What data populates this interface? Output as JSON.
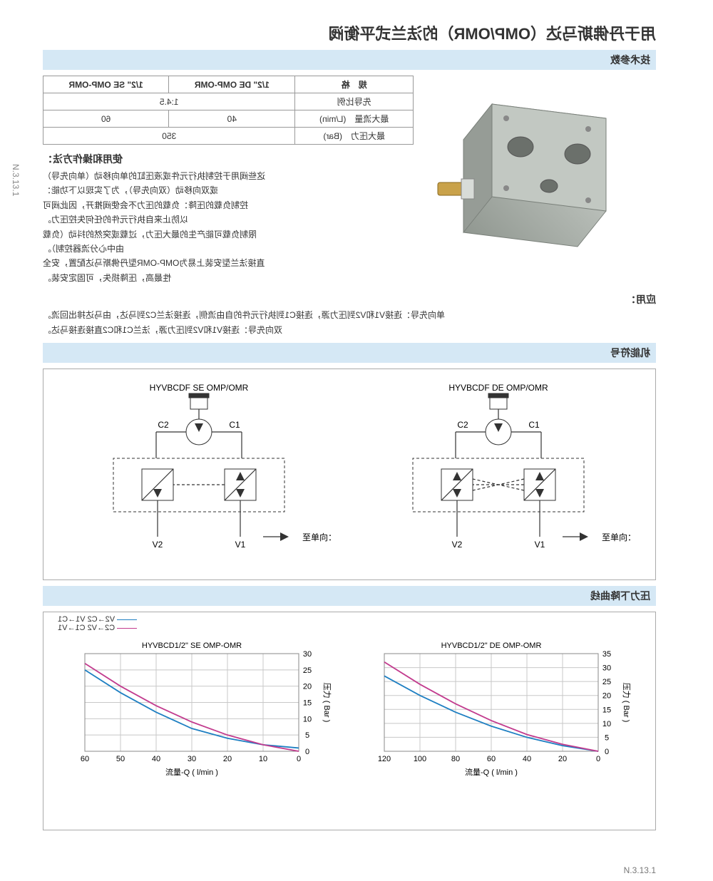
{
  "page_code": "N.3.13.1",
  "title": "用于丹佛斯马达（OMP/OMR）的法兰式平衡阀",
  "sections": {
    "tech": "技术参数",
    "func": "机能符号",
    "curve": "压力下降曲线"
  },
  "spec_table": {
    "headers": [
      "规　格",
      "1/2\" DE OMP-OMR",
      "1/2\" SE OMP-OMR"
    ],
    "rows": [
      [
        "先导比例",
        "1:4.5",
        ""
      ],
      [
        "最大流量　(L/min)",
        "40",
        "60"
      ],
      [
        "最大压力　(Bar)",
        "350",
        ""
      ]
    ]
  },
  "usage": {
    "title": "使用和操作方法：",
    "lines": [
      "这些阀用于控制执行元件或液压缸的单向移动（单向先导）",
      "或双向移动（双向先导），为了实现以下功能：",
      "控制负载的压降：负载的压力不会使阀推开，因此阀可",
      "以防止来自执行元件的任何失控压力。",
      "限制负载可能产生的最大压力，过载或突然的抖动（负载",
      "由中心分流器控制）。",
      "直接法兰型安装上易为OMP-OMR型丹佛斯马达配置，安全",
      "性最高，压降损失，可固定安装。"
    ]
  },
  "application": {
    "title": "应用：",
    "lines": [
      "单向先导：连接V1和V2到压力源，连接C1到执行元件的自由流侧，连接法兰C2到马达，由马达排出回流。",
      "双向先导：连接V1和V2到压力源，法兰C1和C2直接连接马达。"
    ]
  },
  "schematics": {
    "de": {
      "title": "HYVBCDF DE OMP/OMR",
      "c1": "C1",
      "c2": "C2",
      "v1": "V1",
      "v2": "V2",
      "to": "至单向："
    },
    "se": {
      "title": "HYVBCDF SE OMP/OMR",
      "c1": "C1",
      "c2": "C2",
      "v1": "V1",
      "v2": "V2",
      "to": "至单向："
    }
  },
  "charts": {
    "xlabel": "流量-Q ( l/min )",
    "ylabel": "压力 ( Bar )",
    "de": {
      "title": "HYVBCD1/2\" DE OMP-OMR",
      "xticks": [
        0,
        20,
        40,
        60,
        80,
        100,
        120
      ],
      "yticks": [
        0,
        5,
        10,
        15,
        20,
        25,
        30,
        35
      ],
      "colors": {
        "s1": "#1e7fc2",
        "s2": "#c23b8e"
      },
      "series1": [
        [
          0,
          0
        ],
        [
          20,
          2
        ],
        [
          40,
          5
        ],
        [
          60,
          9
        ],
        [
          80,
          14
        ],
        [
          100,
          20
        ],
        [
          120,
          27
        ]
      ],
      "series2": [
        [
          0,
          0
        ],
        [
          20,
          2.5
        ],
        [
          40,
          6
        ],
        [
          60,
          11
        ],
        [
          80,
          17
        ],
        [
          100,
          24
        ],
        [
          120,
          32
        ]
      ]
    },
    "se": {
      "title": "HYVBCD1/2\" SE OMP-OMR",
      "legend": [
        "V2→C2  V1→C1",
        "C2→V2  C1→V1"
      ],
      "xticks": [
        0,
        10,
        20,
        30,
        40,
        50,
        60
      ],
      "yticks": [
        0,
        5,
        10,
        15,
        20,
        25,
        30
      ],
      "colors": {
        "s1": "#1e7fc2",
        "s2": "#c23b8e"
      },
      "series1": [
        [
          0,
          1
        ],
        [
          10,
          2
        ],
        [
          20,
          4
        ],
        [
          30,
          7
        ],
        [
          40,
          12
        ],
        [
          50,
          18
        ],
        [
          60,
          25
        ]
      ],
      "series2": [
        [
          0,
          0
        ],
        [
          10,
          2
        ],
        [
          20,
          5
        ],
        [
          30,
          9
        ],
        [
          40,
          14
        ],
        [
          50,
          20
        ],
        [
          60,
          27
        ]
      ]
    },
    "grid_color": "#c8c8c8",
    "bg": "#ffffff"
  },
  "product_render": {
    "body": "#b8beb8",
    "shade": "#9aa29a",
    "hilite": "#d4d8d4",
    "bolt": "#c9a24a"
  }
}
